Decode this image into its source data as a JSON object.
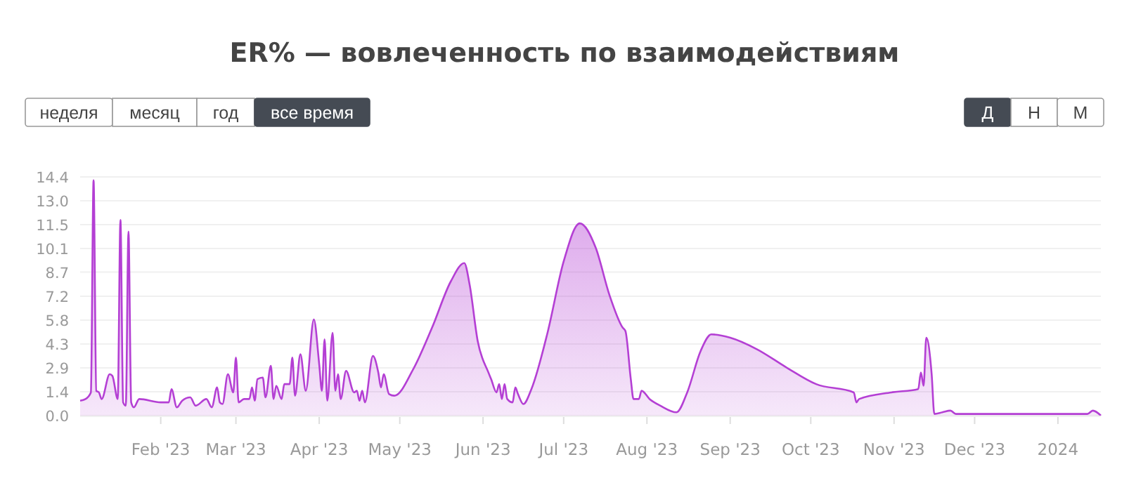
{
  "chart_data": {
    "type": "area",
    "title": "ER% — вовлеченность по взаимодействиям",
    "annotations": [
      "неделя",
      "месяц",
      "год",
      "все время",
      "Д",
      "Н",
      "М"
    ],
    "x": [
      "2023-01-02",
      "2023-01-04",
      "2023-01-06",
      "2023-01-07",
      "2023-01-08",
      "2023-01-09",
      "2023-01-10",
      "2023-01-13",
      "2023-01-14",
      "2023-01-16",
      "2023-01-17",
      "2023-01-18",
      "2023-01-19",
      "2023-01-20",
      "2023-01-21",
      "2023-01-22",
      "2023-01-24",
      "2023-02-01",
      "2023-02-04",
      "2023-02-05",
      "2023-02-07",
      "2023-02-09",
      "2023-02-12",
      "2023-02-14",
      "2023-02-18",
      "2023-02-20",
      "2023-02-22",
      "2023-02-23",
      "2023-02-24",
      "2023-02-26",
      "2023-02-28",
      "2023-03-01",
      "2023-03-02",
      "2023-03-04",
      "2023-03-06",
      "2023-03-07",
      "2023-03-08",
      "2023-03-09",
      "2023-03-11",
      "2023-03-12",
      "2023-03-14",
      "2023-03-15",
      "2023-03-16",
      "2023-03-18",
      "2023-03-19",
      "2023-03-21",
      "2023-03-22",
      "2023-03-23",
      "2023-03-25",
      "2023-03-27",
      "2023-03-30",
      "2023-04-01",
      "2023-04-02",
      "2023-04-03",
      "2023-04-04",
      "2023-04-06",
      "2023-04-07",
      "2023-04-08",
      "2023-04-09",
      "2023-04-11",
      "2023-04-14",
      "2023-04-15",
      "2023-04-16",
      "2023-04-17",
      "2023-04-18",
      "2023-04-21",
      "2023-04-23",
      "2023-04-24",
      "2023-04-25",
      "2023-04-27",
      "2023-04-29",
      "2023-05-06",
      "2023-05-13",
      "2023-05-20",
      "2023-05-25",
      "2023-05-27",
      "2023-05-30",
      "2023-06-03",
      "2023-06-04",
      "2023-06-06",
      "2023-06-07",
      "2023-06-08",
      "2023-06-09",
      "2023-06-10",
      "2023-06-12",
      "2023-06-13",
      "2023-06-14",
      "2023-06-16",
      "2023-06-19",
      "2023-06-25",
      "2023-07-01",
      "2023-07-07",
      "2023-07-13",
      "2023-07-18",
      "2023-07-23",
      "2023-07-24",
      "2023-07-26",
      "2023-07-27",
      "2023-07-29",
      "2023-07-30",
      "2023-08-02",
      "2023-08-06",
      "2023-08-12",
      "2023-08-16",
      "2023-08-21",
      "2023-08-25",
      "2023-09-01",
      "2023-09-11",
      "2023-09-22",
      "2023-10-03",
      "2023-10-17",
      "2023-10-18",
      "2023-10-19",
      "2023-10-31",
      "2023-11-10",
      "2023-11-11",
      "2023-11-12",
      "2023-11-13",
      "2023-11-15",
      "2023-11-16",
      "2023-11-19",
      "2023-11-22",
      "2023-11-24",
      "2023-12-16",
      "2024-01-12",
      "2024-01-14",
      "2024-01-17"
    ],
    "series": [
      {
        "color": "#b43fd4",
        "values": [
          0.9,
          1.0,
          1.4,
          14.2,
          1.5,
          1.4,
          1.0,
          2.5,
          2.4,
          1.0,
          11.8,
          0.8,
          0.6,
          11.1,
          0.8,
          0.5,
          1.0,
          0.8,
          0.8,
          1.6,
          0.5,
          0.9,
          1.1,
          0.6,
          1.0,
          0.5,
          1.7,
          0.8,
          0.7,
          2.5,
          1.4,
          3.5,
          0.8,
          1.0,
          1.0,
          1.7,
          0.9,
          2.2,
          2.3,
          1.1,
          3.0,
          1.0,
          1.8,
          1.0,
          1.9,
          1.9,
          3.5,
          1.2,
          3.7,
          1.5,
          5.8,
          3.1,
          1.5,
          4.6,
          0.9,
          5.0,
          1.5,
          2.5,
          1.0,
          2.7,
          1.4,
          1.5,
          0.9,
          1.5,
          0.8,
          3.6,
          2.6,
          1.7,
          2.5,
          1.3,
          1.2,
          2.8,
          5.3,
          8.1,
          9.2,
          7.9,
          4.5,
          2.6,
          2.2,
          1.4,
          1.9,
          1.0,
          1.9,
          1.0,
          0.8,
          1.7,
          1.3,
          0.7,
          1.6,
          5.0,
          9.3,
          11.6,
          10.1,
          7.3,
          5.3,
          5.1,
          2.2,
          1.0,
          1.0,
          1.5,
          1.0,
          0.6,
          0.2,
          1.4,
          3.9,
          4.9,
          4.7,
          4.0,
          2.9,
          1.9,
          1.4,
          0.8,
          1.0,
          1.4,
          1.6,
          2.6,
          1.8,
          4.7,
          2.5,
          0.1,
          0.2,
          0.3,
          0.1,
          0.1,
          0.1,
          0.3,
          0.0
        ]
      }
    ],
    "xlim": [
      "2023-01-02",
      "2024-01-17"
    ],
    "xticks": [
      {
        "value": "2023-02-01",
        "label": "Feb '23"
      },
      {
        "value": "2023-03-01",
        "label": "Mar '23"
      },
      {
        "value": "2023-04-01",
        "label": "Apr '23"
      },
      {
        "value": "2023-05-01",
        "label": "May '23"
      },
      {
        "value": "2023-06-01",
        "label": "Jun '23"
      },
      {
        "value": "2023-07-01",
        "label": "Jul '23"
      },
      {
        "value": "2023-08-01",
        "label": "Aug '23"
      },
      {
        "value": "2023-09-01",
        "label": "Sep '23"
      },
      {
        "value": "2023-10-01",
        "label": "Oct '23"
      },
      {
        "value": "2023-11-01",
        "label": "Nov '23"
      },
      {
        "value": "2023-12-01",
        "label": "Dec '23"
      },
      {
        "value": "2024-01-01",
        "label": "2024"
      }
    ],
    "ylim": [
      0,
      14.4
    ],
    "yticks": [
      {
        "value": 0,
        "label": "0.0"
      },
      {
        "value": 1.44,
        "label": "1.4"
      },
      {
        "value": 2.88,
        "label": "2.9"
      },
      {
        "value": 4.32,
        "label": "4.3"
      },
      {
        "value": 5.76,
        "label": "5.8"
      },
      7.2,
      {
        "value": 8.66,
        "label": "8.7"
      },
      {
        "value": 10.08,
        "label": "10.1"
      },
      {
        "value": 11.52,
        "label": "11.5"
      },
      {
        "value": 12.96,
        "label": "13.0"
      },
      14.4
    ],
    "grid": "y",
    "marker": "none",
    "line_style": "solid"
  }
}
